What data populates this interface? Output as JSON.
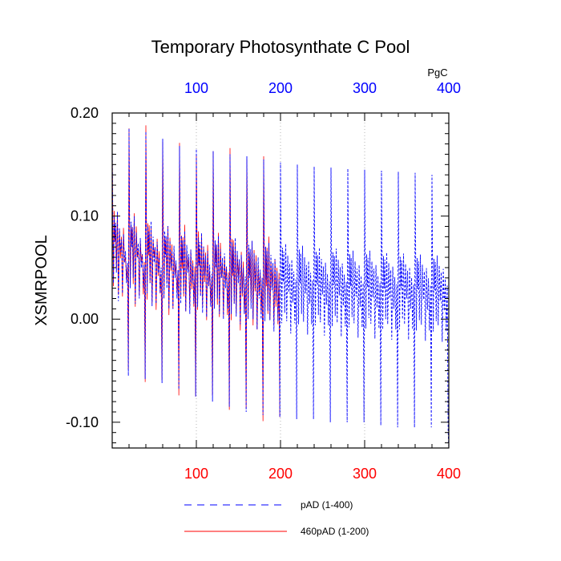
{
  "chart_data": {
    "type": "line",
    "title": "Temporary Photosynthate C Pool",
    "ylabel": "XSMRPOOL",
    "top_axis_unit": "PgC",
    "xlim": [
      0,
      400
    ],
    "ylim": [
      -0.125,
      0.2
    ],
    "x_ticks": [
      "100",
      "200",
      "300",
      "400"
    ],
    "y_ticks": [
      "0.20",
      "0.10",
      "0.00",
      "-0.10"
    ],
    "grid": "vertical-dotted",
    "legend_position": "bottom",
    "colors": {
      "bottom_axis": "#ff0000",
      "top_axis": "#0000ff",
      "series_blue": "#0000ff",
      "series_red": "#ff0000"
    },
    "series": [
      {
        "name": "pAD (1-400)",
        "color": "#0000ff",
        "style": "dashed",
        "cycle_length": 20,
        "cycle_offsets": [
          0,
          1,
          2,
          3,
          4,
          5,
          6,
          7,
          8,
          9,
          10,
          11,
          12,
          13,
          14,
          15,
          16,
          17,
          18,
          19
        ],
        "cycle_peaks": [
          0.17,
          0.185,
          0.182,
          0.175,
          0.168,
          0.165,
          0.163,
          0.16,
          0.158,
          0.155,
          0.152,
          0.15,
          0.148,
          0.147,
          0.146,
          0.145,
          0.144,
          0.143,
          0.142,
          0.14
        ],
        "cycle_troughs": [
          -0.055,
          -0.058,
          -0.062,
          -0.068,
          -0.075,
          -0.08,
          -0.085,
          -0.09,
          -0.093,
          -0.095,
          -0.097,
          -0.097,
          -0.1,
          -0.1,
          -0.1,
          -0.103,
          -0.105,
          -0.105,
          -0.105,
          -0.108
        ],
        "cycle_mid_levels": [
          0.11,
          0.105,
          0.1,
          0.095,
          0.09,
          0.088,
          0.085,
          0.083,
          0.08,
          0.078,
          0.077,
          0.075,
          0.073,
          0.072,
          0.07,
          0.07,
          0.068,
          0.067,
          0.066,
          0.065
        ],
        "cycle_low_levels": [
          0.035,
          0.03,
          0.025,
          0.02,
          0.015,
          0.012,
          0.01,
          0.005,
          0.0,
          -0.002,
          -0.004,
          -0.005,
          -0.006,
          -0.007,
          -0.008,
          -0.009,
          -0.01,
          -0.01,
          -0.011,
          -0.012
        ],
        "cycles": 20
      },
      {
        "name": "460pAD (1-200)",
        "color": "#ff0000",
        "style": "solid",
        "cycles": 10
      }
    ]
  }
}
